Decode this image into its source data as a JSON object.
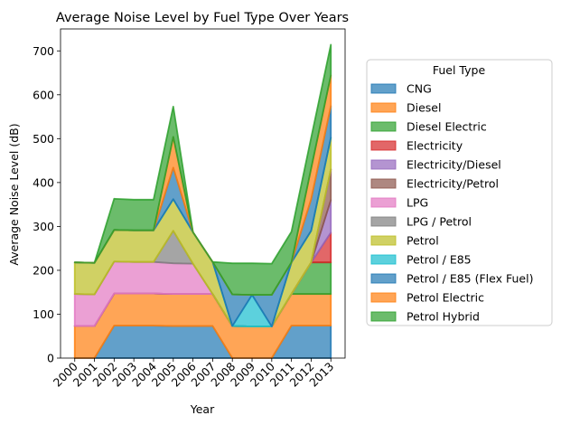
{
  "chart_data": {
    "type": "area",
    "stacked": true,
    "title": "Average Noise Level by Fuel Type Over Years",
    "xlabel": "Year",
    "ylabel": "Average Noise Level (dB)",
    "x": [
      2000,
      2001,
      2002,
      2003,
      2004,
      2005,
      2006,
      2007,
      2008,
      2009,
      2010,
      2011,
      2012,
      2013
    ],
    "xticks": [
      "2000",
      "2001",
      "2002",
      "2003",
      "2004",
      "2005",
      "2006",
      "2007",
      "2008",
      "2009",
      "2010",
      "2011",
      "2012",
      "2013"
    ],
    "ylim": [
      0,
      750
    ],
    "yticks": [
      0,
      100,
      200,
      300,
      400,
      500,
      600,
      700
    ],
    "ytick_labels": [
      "0",
      "100",
      "200",
      "300",
      "400",
      "500",
      "600",
      "700"
    ],
    "legend_title": "Fuel Type",
    "legend_position": "right",
    "series": [
      {
        "name": "CNG",
        "color": "#1f77b4",
        "values": [
          0,
          0,
          74,
          74,
          74,
          73,
          73,
          73,
          0,
          0,
          0,
          74,
          74,
          74
        ]
      },
      {
        "name": "Diesel",
        "color": "#ff7f0e",
        "values": [
          73,
          73,
          73,
          73,
          73,
          73,
          73,
          73,
          73,
          72,
          72,
          72,
          72,
          72
        ]
      },
      {
        "name": "Diesel Electric",
        "color": "#2ca02c",
        "values": [
          0,
          0,
          0,
          0,
          0,
          0,
          0,
          0,
          0,
          0,
          0,
          0,
          72,
          72
        ]
      },
      {
        "name": "Electricity",
        "color": "#d62728",
        "values": [
          0,
          0,
          0,
          0,
          0,
          0,
          0,
          0,
          0,
          0,
          0,
          0,
          0,
          68
        ]
      },
      {
        "name": "Electricity/Diesel",
        "color": "#9467bd",
        "values": [
          0,
          0,
          0,
          0,
          0,
          0,
          0,
          0,
          0,
          0,
          0,
          0,
          0,
          74
        ]
      },
      {
        "name": "Electricity/Petrol",
        "color": "#8c564b",
        "values": [
          0,
          0,
          0,
          0,
          0,
          0,
          0,
          0,
          0,
          0,
          0,
          0,
          0,
          70
        ]
      },
      {
        "name": "LPG",
        "color": "#e377c2",
        "values": [
          73,
          72,
          73,
          72,
          72,
          70,
          69,
          0,
          0,
          0,
          0,
          0,
          0,
          0
        ]
      },
      {
        "name": "LPG / Petrol",
        "color": "#7f7f7f",
        "values": [
          0,
          0,
          0,
          0,
          0,
          74,
          0,
          0,
          0,
          0,
          0,
          0,
          0,
          0
        ]
      },
      {
        "name": "Petrol",
        "color": "#bcbd22",
        "values": [
          72,
          72,
          72,
          72,
          72,
          72,
          72,
          73,
          0,
          0,
          0,
          72,
          72,
          72
        ]
      },
      {
        "name": "Petrol / E85",
        "color": "#17becf",
        "values": [
          0,
          0,
          0,
          0,
          0,
          0,
          0,
          0,
          0,
          72,
          0,
          0,
          0,
          0
        ]
      },
      {
        "name": "Petrol / E85 (Flex Fuel)",
        "color": "#1f77b4",
        "values": [
          0,
          0,
          0,
          0,
          0,
          72,
          0,
          0,
          72,
          0,
          72,
          0,
          72,
          72
        ]
      },
      {
        "name": "Petrol Electric",
        "color": "#ff7f0e",
        "values": [
          0,
          0,
          0,
          0,
          0,
          70,
          0,
          0,
          0,
          0,
          0,
          0,
          70,
          70
        ]
      },
      {
        "name": "Petrol Hybrid",
        "color": "#2ca02c",
        "values": [
          0,
          0,
          71,
          70,
          70,
          69,
          0,
          0,
          71,
          72,
          71,
          70,
          70,
          70
        ]
      }
    ]
  }
}
